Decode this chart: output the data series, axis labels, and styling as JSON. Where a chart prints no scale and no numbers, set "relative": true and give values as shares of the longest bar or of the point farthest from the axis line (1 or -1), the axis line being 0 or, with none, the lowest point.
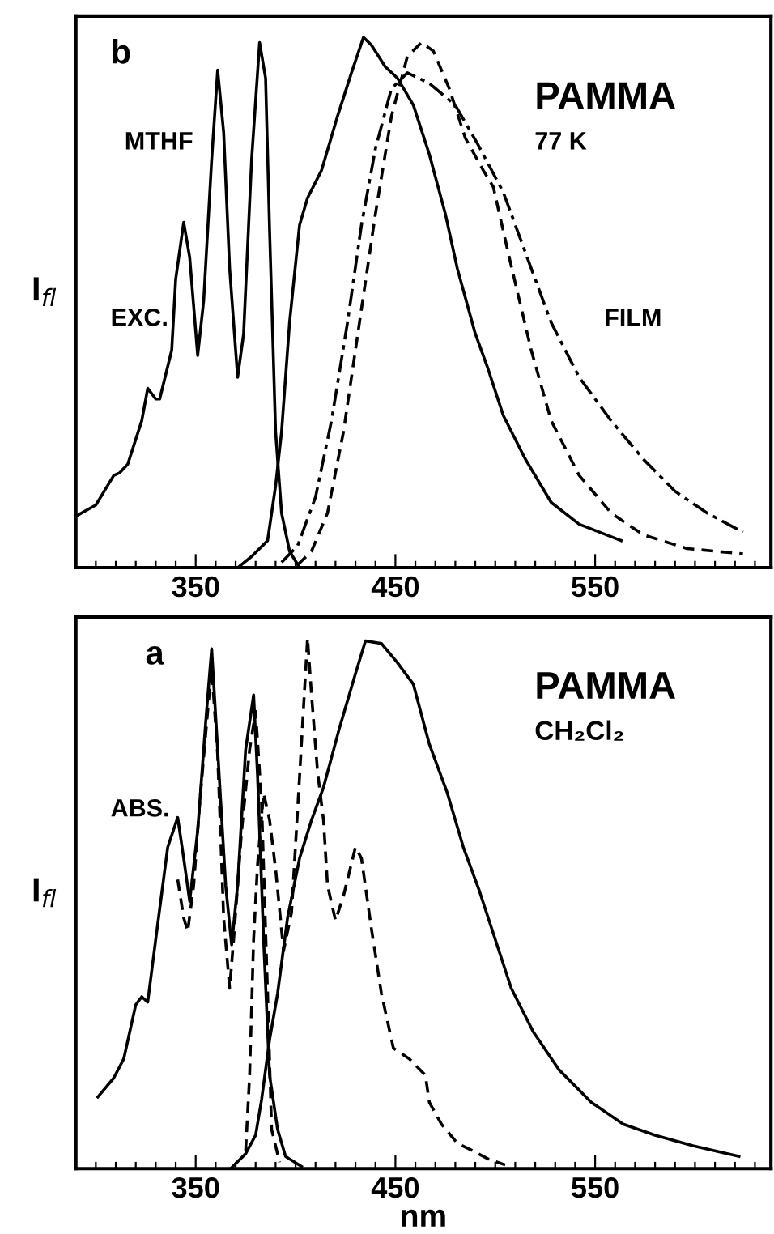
{
  "chart_data": [
    {
      "type": "line",
      "relative": true,
      "ylabel": "I$_{fl}$",
      "xlim": [
        290,
        638
      ],
      "xticks": [
        {
          "value": 300,
          "label": null
        },
        {
          "value": 310,
          "label": null
        },
        {
          "value": 320,
          "label": null
        },
        {
          "value": 330,
          "label": null
        },
        {
          "value": 340,
          "label": null
        },
        350,
        {
          "value": 360,
          "label": null
        },
        {
          "value": 370,
          "label": null
        },
        {
          "value": 380,
          "label": null
        },
        {
          "value": 390,
          "label": null
        },
        {
          "value": 400,
          "label": null
        },
        {
          "value": 410,
          "label": null
        },
        {
          "value": 420,
          "label": null
        },
        {
          "value": 430,
          "label": null
        },
        {
          "value": 440,
          "label": null
        },
        450,
        {
          "value": 460,
          "label": null
        },
        {
          "value": 470,
          "label": null
        },
        {
          "value": 480,
          "label": null
        },
        {
          "value": 490,
          "label": null
        },
        {
          "value": 500,
          "label": null
        },
        {
          "value": 510,
          "label": null
        },
        {
          "value": 520,
          "label": null
        },
        {
          "value": 530,
          "label": null
        },
        {
          "value": 540,
          "label": null
        },
        550,
        {
          "value": 560,
          "label": null
        },
        {
          "value": 570,
          "label": null
        },
        {
          "value": 580,
          "label": null
        },
        {
          "value": 590,
          "label": null
        },
        {
          "value": 600,
          "label": null
        },
        {
          "value": 610,
          "label": null
        },
        {
          "value": 620,
          "label": null
        },
        {
          "value": 630,
          "label": null
        }
      ],
      "tick_labels": "x",
      "grid": false,
      "legend": false,
      "annotations": [
        "b",
        "MTHF",
        "PAMMA",
        "77 K"
      ],
      "series": [
        {
          "name": "EXC.",
          "color": "#000000",
          "line_style": "solid",
          "x": [
            290,
            300,
            309,
            312,
            316,
            323,
            326,
            330,
            332,
            338,
            340,
            344,
            347,
            351,
            354,
            358,
            361,
            364,
            367,
            371,
            374,
            378,
            382,
            385,
            387,
            390,
            393,
            397,
            402
          ],
          "values": [
            0.097,
            0.118,
            0.174,
            0.179,
            0.195,
            0.277,
            0.338,
            0.318,
            0.318,
            0.41,
            0.544,
            0.651,
            0.585,
            0.4,
            0.503,
            0.769,
            0.938,
            0.821,
            0.564,
            0.359,
            0.441,
            0.769,
            0.99,
            0.923,
            0.636,
            0.256,
            0.103,
            0.031,
            0
          ]
        },
        {
          "color": "#000000",
          "line_style": "solid",
          "x": [
            371,
            378,
            386,
            390,
            393,
            397,
            402,
            406,
            413,
            421,
            428,
            434,
            438,
            445,
            451,
            459,
            467,
            475,
            481,
            490,
            496,
            504,
            515,
            528,
            542,
            563
          ],
          "values": [
            0,
            0.021,
            0.051,
            0.154,
            0.256,
            0.462,
            0.646,
            0.697,
            0.749,
            0.851,
            0.933,
            1,
            0.985,
            0.944,
            0.923,
            0.872,
            0.779,
            0.667,
            0.564,
            0.441,
            0.379,
            0.287,
            0.205,
            0.123,
            0.082,
            0.051
          ]
        },
        {
          "color": "#000000",
          "line_style": "dashed",
          "x": [
            401,
            408,
            416,
            424,
            432,
            440,
            448,
            456,
            463,
            469,
            477,
            485,
            494,
            499,
            507,
            518,
            528,
            542,
            558,
            574,
            596,
            624
          ],
          "values": [
            0.005,
            0.031,
            0.103,
            0.256,
            0.462,
            0.667,
            0.851,
            0.964,
            0.99,
            0.974,
            0.903,
            0.81,
            0.749,
            0.718,
            0.585,
            0.41,
            0.277,
            0.174,
            0.103,
            0.062,
            0.036,
            0.026
          ]
        },
        {
          "name": "FILM",
          "color": "#000000",
          "line_style": "dashdot",
          "x": [
            393,
            401,
            410,
            418,
            426,
            433,
            440,
            448,
            456,
            467,
            480,
            491,
            504,
            515,
            528,
            542,
            558,
            574,
            590,
            606,
            624
          ],
          "values": [
            0.01,
            0.041,
            0.133,
            0.277,
            0.462,
            0.646,
            0.79,
            0.903,
            0.933,
            0.913,
            0.872,
            0.8,
            0.708,
            0.595,
            0.462,
            0.359,
            0.277,
            0.205,
            0.144,
            0.103,
            0.067
          ]
        }
      ]
    },
    {
      "type": "line",
      "relative": true,
      "ylabel": "I$_{fl}$",
      "xlabel": "nm",
      "xlim": [
        290,
        638
      ],
      "xticks": [
        {
          "value": 300,
          "label": null
        },
        {
          "value": 310,
          "label": null
        },
        {
          "value": 320,
          "label": null
        },
        {
          "value": 330,
          "label": null
        },
        {
          "value": 340,
          "label": null
        },
        350,
        {
          "value": 360,
          "label": null
        },
        {
          "value": 370,
          "label": null
        },
        {
          "value": 380,
          "label": null
        },
        {
          "value": 390,
          "label": null
        },
        {
          "value": 400,
          "label": null
        },
        {
          "value": 410,
          "label": null
        },
        {
          "value": 420,
          "label": null
        },
        {
          "value": 430,
          "label": null
        },
        {
          "value": 440,
          "label": null
        },
        450,
        {
          "value": 460,
          "label": null
        },
        {
          "value": 470,
          "label": null
        },
        {
          "value": 480,
          "label": null
        },
        {
          "value": 490,
          "label": null
        },
        {
          "value": 500,
          "label": null
        },
        {
          "value": 510,
          "label": null
        },
        {
          "value": 520,
          "label": null
        },
        {
          "value": 530,
          "label": null
        },
        {
          "value": 540,
          "label": null
        },
        550,
        {
          "value": 560,
          "label": null
        },
        {
          "value": 570,
          "label": null
        },
        {
          "value": 580,
          "label": null
        },
        {
          "value": 590,
          "label": null
        },
        {
          "value": 600,
          "label": null
        },
        {
          "value": 610,
          "label": null
        },
        {
          "value": 620,
          "label": null
        },
        {
          "value": 630,
          "label": null
        }
      ],
      "tick_labels": "x",
      "grid": false,
      "legend": false,
      "annotations": [
        "a",
        "PAMMA",
        "CH₂Cl₂"
      ],
      "series": [
        {
          "name": "ABS.",
          "color": "#000000",
          "line_style": "solid",
          "x": [
            301,
            309,
            314,
            320,
            323,
            326,
            330,
            336,
            341,
            344,
            347,
            351,
            355,
            358,
            361,
            365,
            368,
            371,
            375,
            379,
            381,
            384,
            387,
            391,
            395,
            403
          ],
          "values": [
            0.135,
            0.171,
            0.207,
            0.309,
            0.324,
            0.314,
            0.432,
            0.606,
            0.662,
            0.585,
            0.504,
            0.637,
            0.841,
            0.98,
            0.79,
            0.534,
            0.422,
            0.534,
            0.79,
            0.893,
            0.739,
            0.432,
            0.176,
            0.074,
            0.023,
            0.004
          ]
        },
        {
          "color": "#000000",
          "line_style": "dashed",
          "x": [
            341,
            344,
            346,
            349,
            352,
            356,
            358,
            361,
            364,
            367,
            369,
            373,
            377,
            380,
            383,
            386,
            388,
            392
          ],
          "values": [
            0.545,
            0.473,
            0.447,
            0.534,
            0.688,
            0.862,
            0.944,
            0.78,
            0.473,
            0.34,
            0.432,
            0.637,
            0.79,
            0.862,
            0.688,
            0.33,
            0.074,
            0.012
          ]
        },
        {
          "color": "#000000",
          "line_style": "solid",
          "x": [
            368,
            375,
            380,
            383,
            387,
            391,
            396,
            402,
            408,
            414,
            422,
            430,
            435,
            443,
            451,
            459,
            467,
            476,
            484,
            492,
            500,
            508,
            519,
            532,
            548,
            564,
            580,
            599,
            613,
            622
          ],
          "values": [
            0.002,
            0.028,
            0.063,
            0.13,
            0.243,
            0.33,
            0.473,
            0.585,
            0.657,
            0.719,
            0.831,
            0.933,
            0.995,
            0.99,
            0.954,
            0.913,
            0.8,
            0.708,
            0.606,
            0.524,
            0.432,
            0.34,
            0.258,
            0.186,
            0.125,
            0.084,
            0.063,
            0.043,
            0.031,
            0.023
          ]
        },
        {
          "color": "#000000",
          "line_style": "dashed",
          "x": [
            375,
            377,
            379,
            381,
            384,
            387,
            390,
            394,
            398,
            402,
            406,
            408,
            411,
            414,
            416,
            420,
            424,
            430,
            433,
            438,
            443,
            449,
            457,
            465,
            467,
            473,
            481,
            489,
            497,
            505
          ],
          "values": [
            0.033,
            0.176,
            0.432,
            0.575,
            0.708,
            0.657,
            0.565,
            0.411,
            0.483,
            0.739,
            1,
            0.893,
            0.749,
            0.657,
            0.534,
            0.468,
            0.514,
            0.606,
            0.585,
            0.452,
            0.33,
            0.227,
            0.207,
            0.176,
            0.125,
            0.084,
            0.048,
            0.033,
            0.017,
            0.007
          ]
        }
      ]
    }
  ]
}
